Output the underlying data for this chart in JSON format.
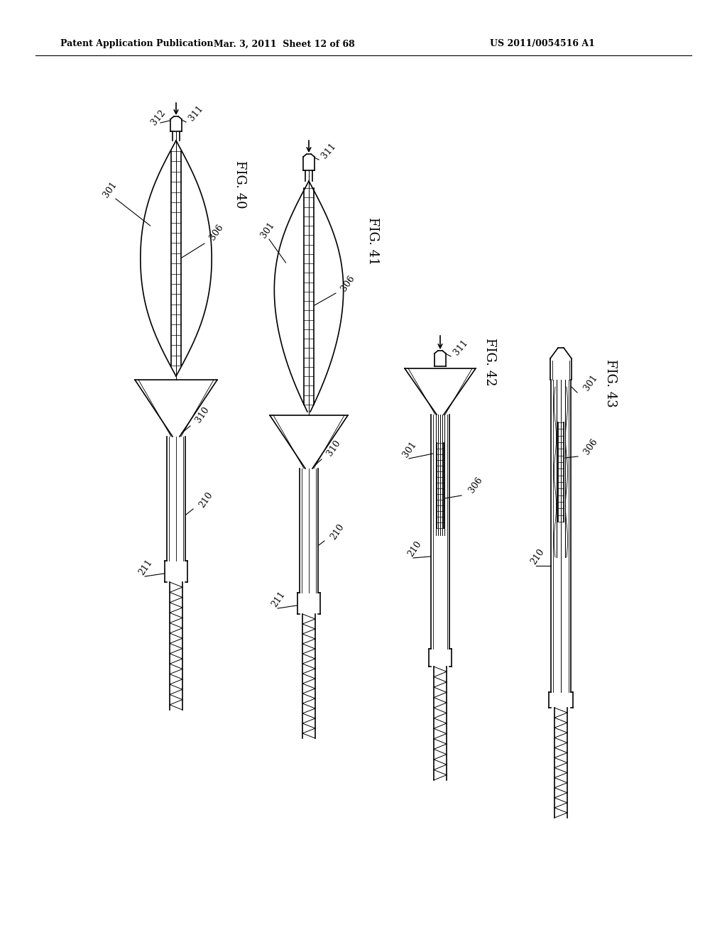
{
  "bg_color": "#ffffff",
  "header_left": "Patent Application Publication",
  "header_mid": "Mar. 3, 2011  Sheet 12 of 68",
  "header_right": "US 2011/0054516 A1",
  "fig_labels": [
    "FIG. 40",
    "FIG. 41",
    "FIG. 42",
    "FIG. 43"
  ],
  "line_color": "#000000",
  "line_width": 1.2,
  "coil_color": "#555555"
}
